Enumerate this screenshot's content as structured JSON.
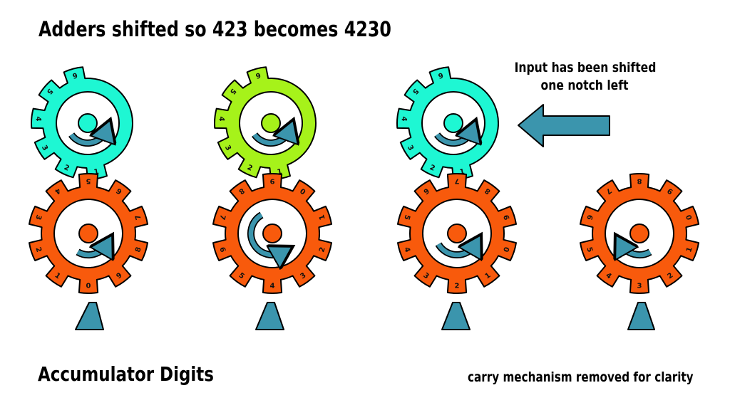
{
  "title": "Adders  shifted so 423 becomes 4230",
  "accumulator_label": "Accumulator Digits",
  "input_note": [
    "Input has been shifted",
    "one notch left"
  ],
  "carry_note": "carry mechanism removed for clarity",
  "colors": {
    "adder": "#1ef7d3",
    "adder_highlight": "#a6f21a",
    "accumulator": "#f85a0c",
    "arrow": "#3b95ad",
    "pointer": "#3b95ad",
    "outline": "#000000"
  },
  "icons": [
    "curved-arrow-icon",
    "left-arrow-icon",
    "pointer-icon"
  ],
  "adders": [
    {
      "name": "adder-gear-1",
      "teeth_digits": [
        "1",
        "2",
        "3",
        "4",
        "5",
        "6"
      ],
      "color": "adder"
    },
    {
      "name": "adder-gear-2",
      "teeth_digits": [
        "1",
        "2",
        "3",
        "4",
        "5",
        "6"
      ],
      "color": "adder_highlight"
    },
    {
      "name": "adder-gear-3",
      "teeth_digits": [
        "1",
        "2",
        "3",
        "4",
        "5",
        "6"
      ],
      "color": "adder"
    }
  ],
  "accumulators": [
    {
      "name": "accumulator-gear-1",
      "digits": [
        "0",
        "1",
        "2",
        "3",
        "4",
        "5",
        "6",
        "7",
        "8",
        "9"
      ]
    },
    {
      "name": "accumulator-gear-2",
      "digits": [
        "4",
        "5",
        "6",
        "7",
        "8",
        "9",
        "0",
        "1",
        "2",
        "3"
      ]
    },
    {
      "name": "accumulator-gear-3",
      "digits": [
        "2",
        "3",
        "4",
        "5",
        "6",
        "7",
        "8",
        "9",
        "0",
        "1"
      ]
    },
    {
      "name": "accumulator-gear-4",
      "digits": [
        "3",
        "4",
        "5",
        "6",
        "7",
        "8",
        "9",
        "0",
        "1",
        "2"
      ]
    }
  ]
}
